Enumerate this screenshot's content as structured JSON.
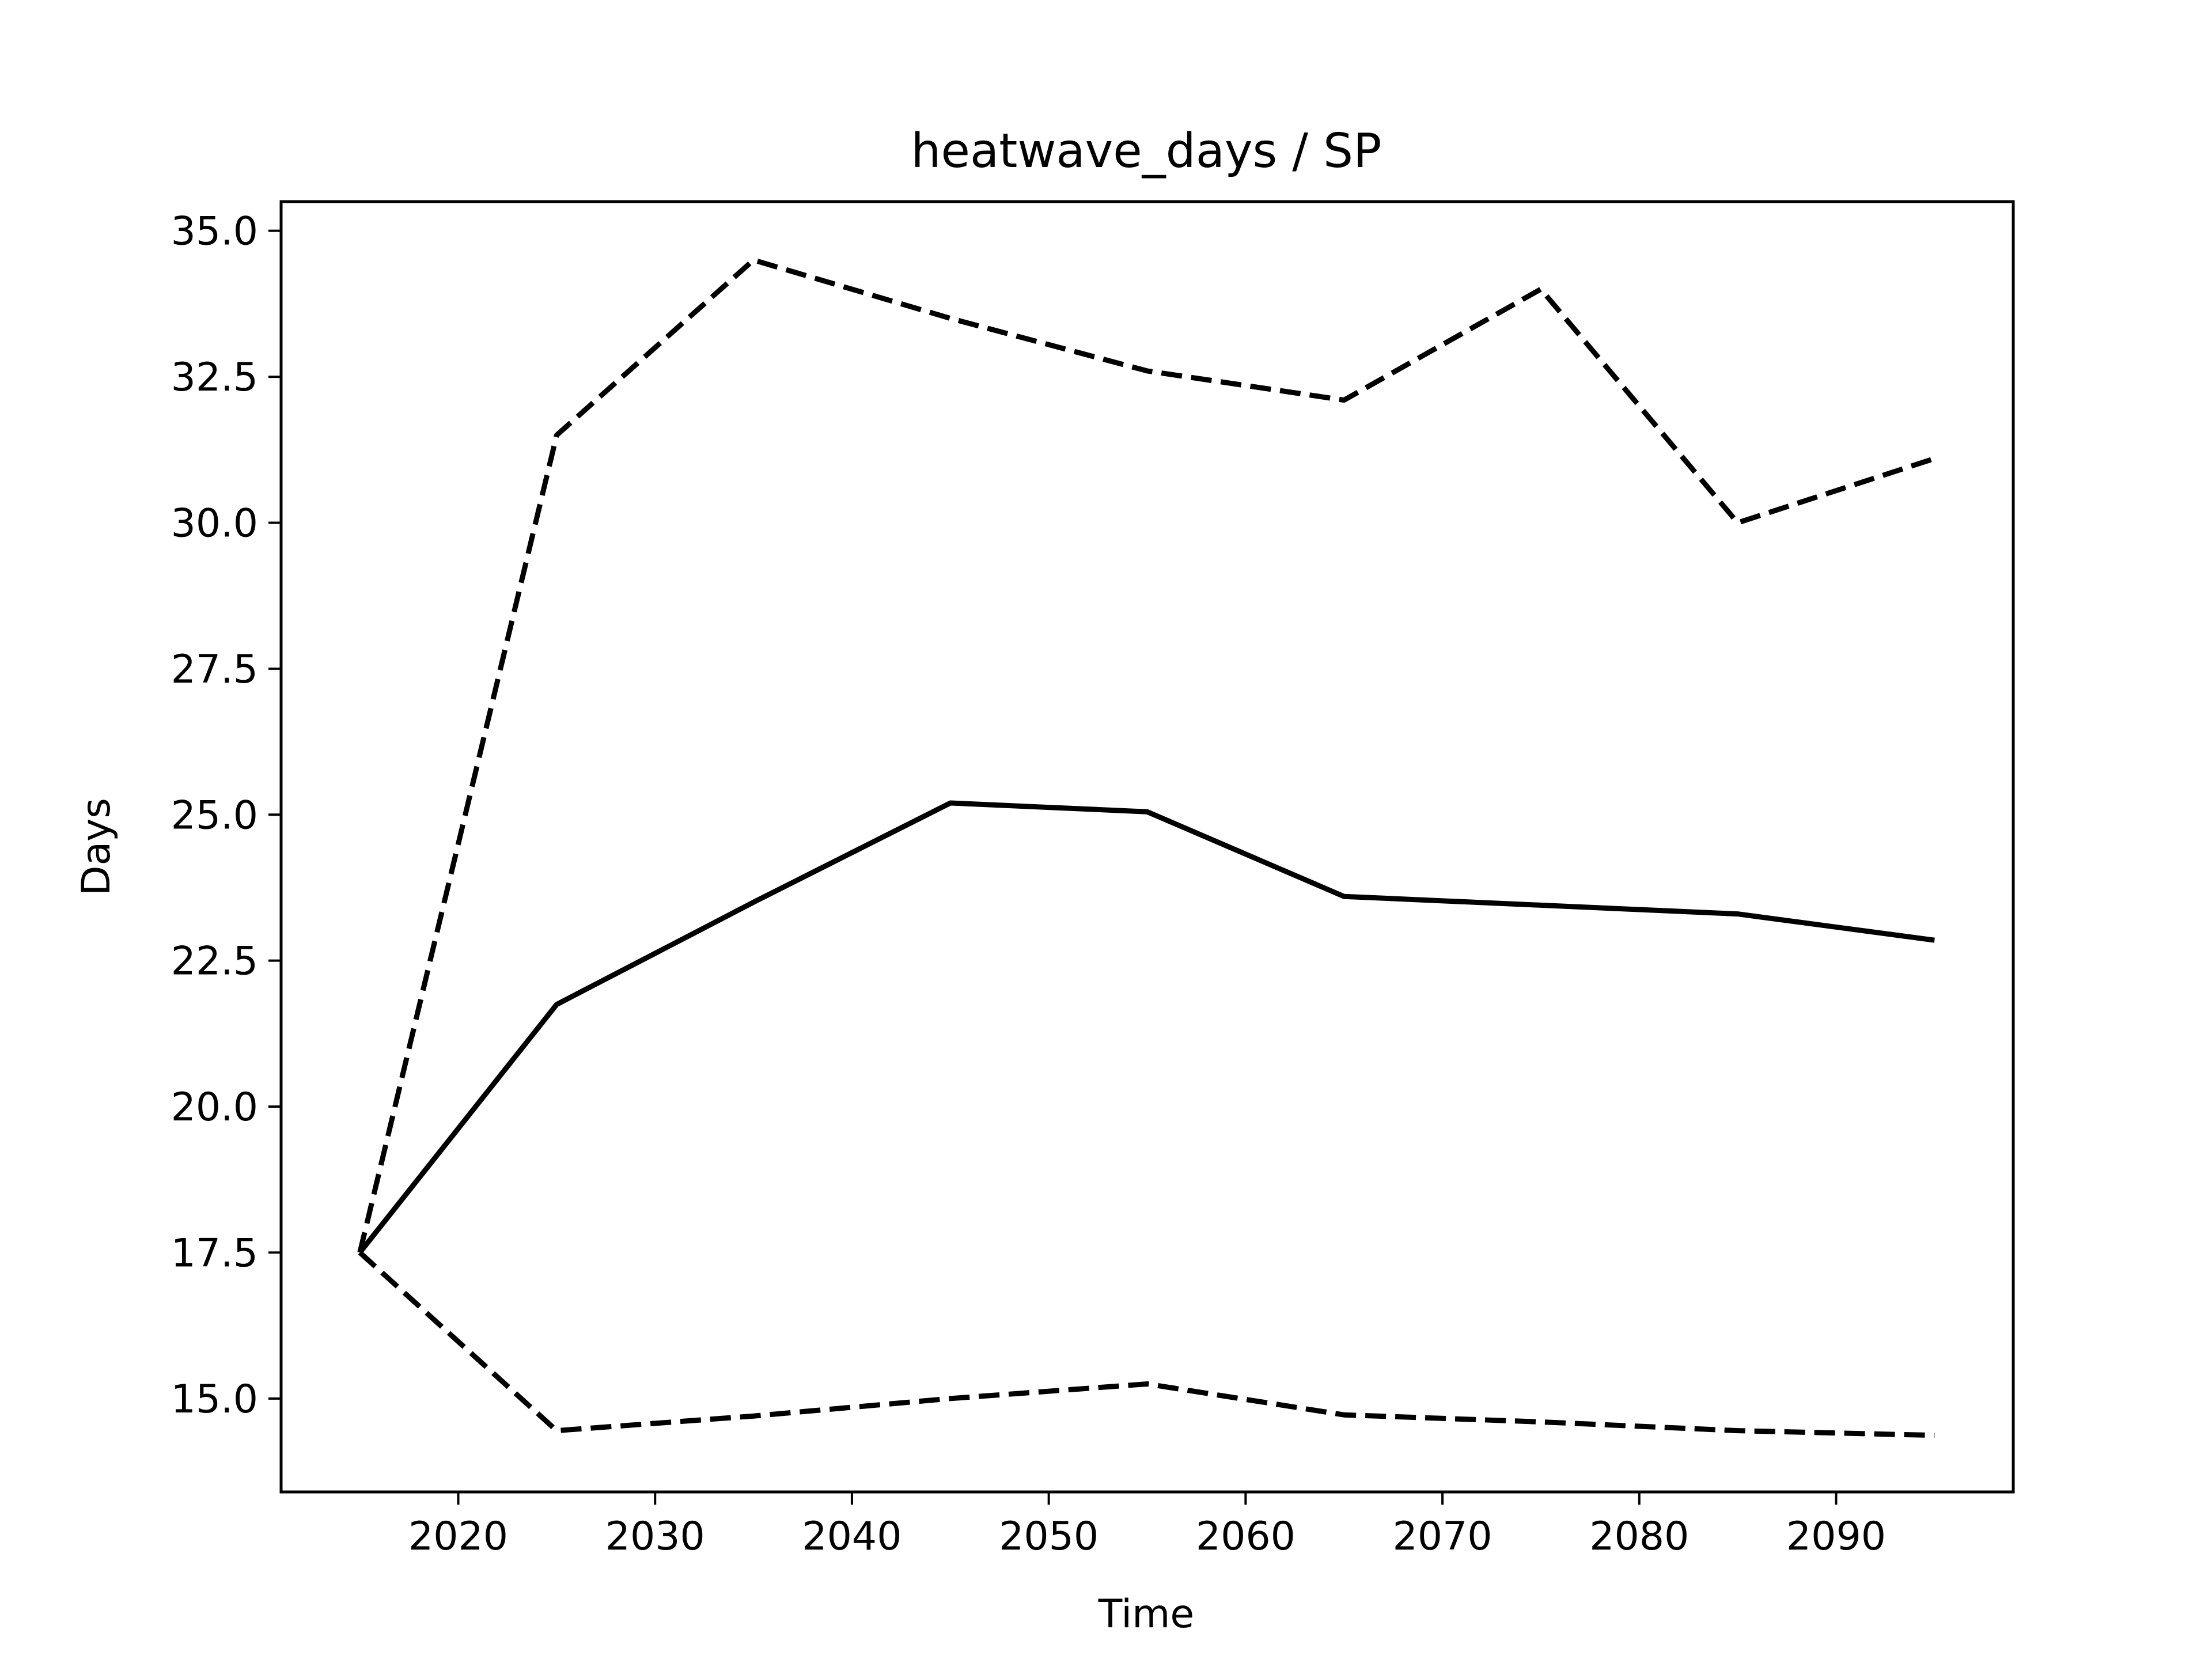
{
  "chart_data": {
    "type": "line",
    "title": "heatwave_days / SP",
    "xlabel": "Time",
    "ylabel": "Days",
    "xlim": [
      2011,
      2099
    ],
    "ylim": [
      13.4,
      35.5
    ],
    "xticks": [
      2020,
      2030,
      2040,
      2050,
      2060,
      2070,
      2080,
      2090
    ],
    "yticks": [
      15.0,
      17.5,
      20.0,
      22.5,
      25.0,
      27.5,
      30.0,
      32.5,
      35.0
    ],
    "xtick_labels": [
      "2020",
      "2030",
      "2040",
      "2050",
      "2060",
      "2070",
      "2080",
      "2090"
    ],
    "ytick_labels": [
      "15.0",
      "17.5",
      "20.0",
      "22.5",
      "25.0",
      "27.5",
      "30.0",
      "32.5",
      "35.0"
    ],
    "grid": false,
    "line_color": "#000000",
    "x": [
      2015,
      2025,
      2035,
      2045,
      2055,
      2065,
      2075,
      2085,
      2095
    ],
    "series": [
      {
        "style": "solid",
        "values": [
          17.5,
          21.75,
          23.5,
          25.2,
          25.05,
          23.6,
          23.45,
          23.3,
          22.85
        ]
      },
      {
        "style": "dashed",
        "values": [
          17.5,
          31.5,
          34.5,
          33.5,
          32.6,
          32.1,
          34.0,
          30.0,
          31.1
        ]
      },
      {
        "style": "dashed",
        "values": [
          17.5,
          14.45,
          14.7,
          15.0,
          15.25,
          14.72,
          14.6,
          14.45,
          14.37
        ]
      }
    ]
  }
}
